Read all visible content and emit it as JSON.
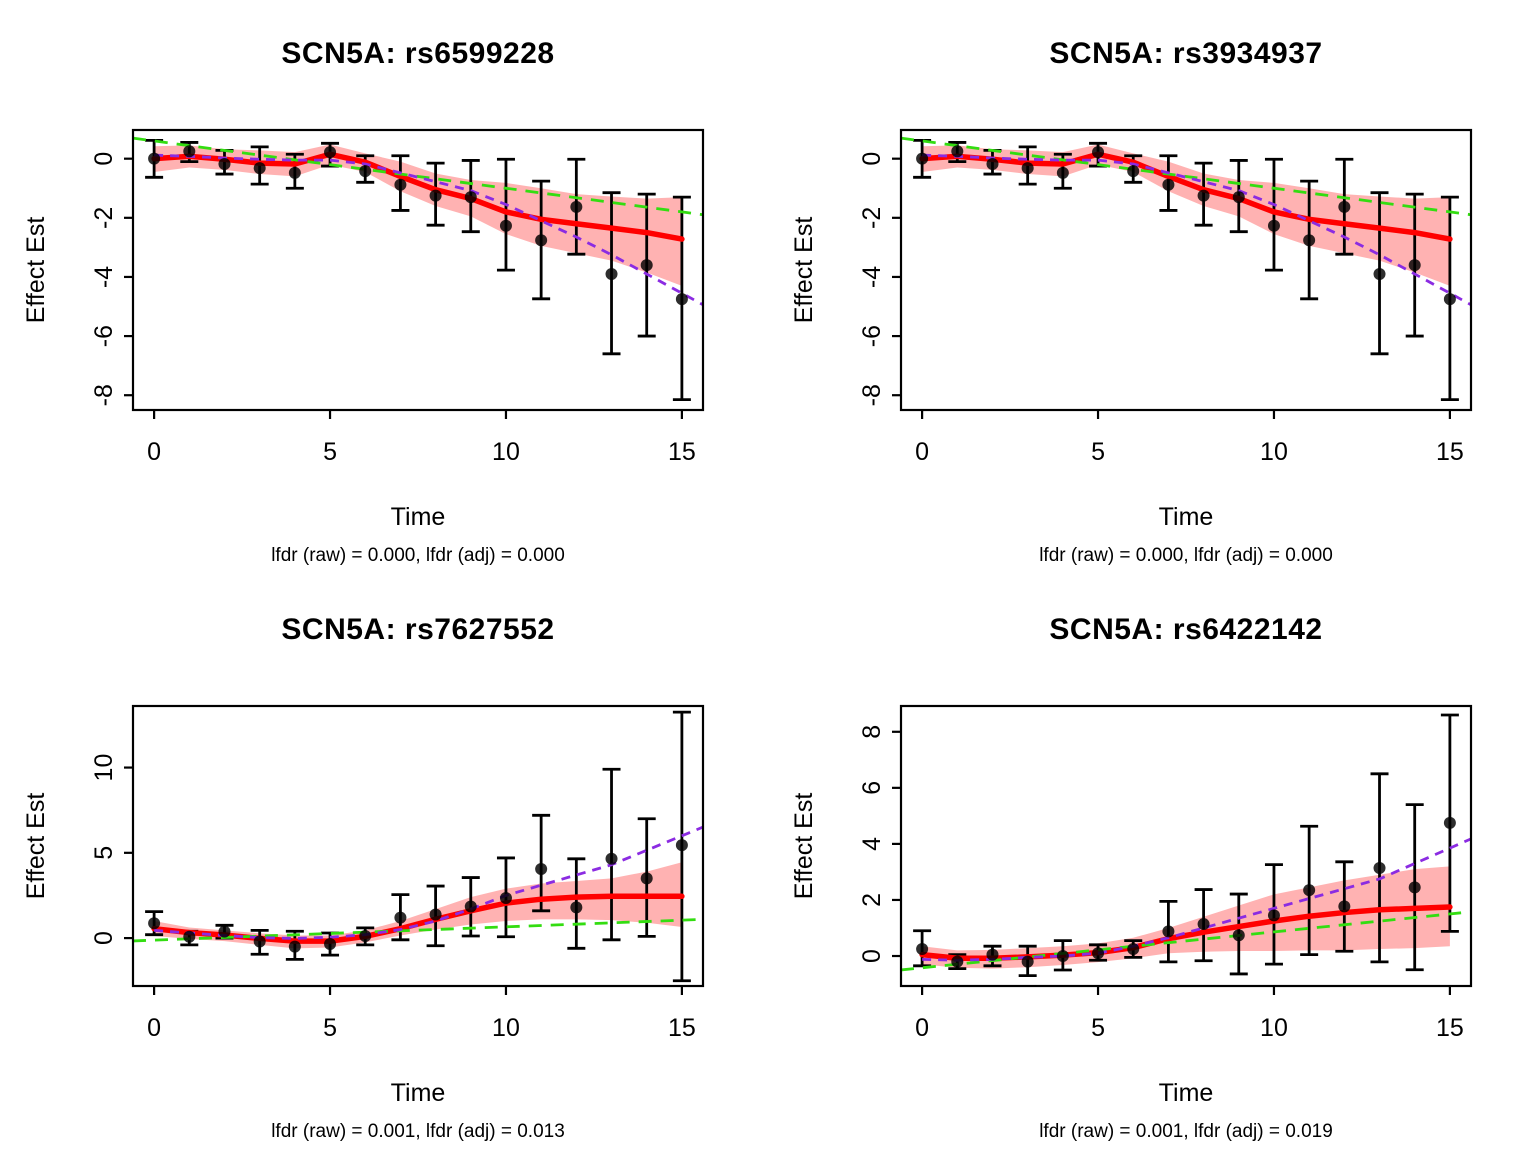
{
  "figure": {
    "background": "#ffffff",
    "colors": {
      "fit_line": "#FF0000",
      "confidence_band": "rgba(255,0,0,0.30)",
      "green_dashed": "#33DD11",
      "purple_dashed": "#8B2BE2",
      "points": "#000000",
      "error_bars": "#000000",
      "axis": "#000000"
    }
  },
  "chart_data": [
    {
      "type": "line",
      "title": "SCN5A: rs6599228",
      "xlabel": "Time",
      "ylabel": "Effect Est",
      "subtitle": "lfdr (raw) = 0.000, lfdr (adj) = 0.000",
      "lfdr_raw": "0.000",
      "lfdr_adj": "0.000",
      "xticks": [
        0,
        5,
        10,
        15
      ],
      "yticks": [
        0,
        -2,
        -4,
        -6,
        -8
      ],
      "xlim": [
        -0.6,
        15.6
      ],
      "ylim": [
        -8.5,
        0.97
      ],
      "x": [
        0,
        1,
        2,
        3,
        4,
        5,
        6,
        7,
        8,
        9,
        10,
        11,
        12,
        13,
        14,
        15
      ],
      "points": [
        0.0,
        0.25,
        -0.18,
        -0.32,
        -0.48,
        0.22,
        -0.42,
        -0.88,
        -1.25,
        -1.3,
        -2.27,
        -2.76,
        -1.63,
        -3.9,
        -3.6,
        -4.75
      ],
      "err_lo": [
        -0.63,
        -0.1,
        -0.52,
        -0.86,
        -1.0,
        -0.25,
        -0.8,
        -1.75,
        -2.25,
        -2.47,
        -3.77,
        -4.74,
        -3.23,
        -6.6,
        -6.0,
        -8.15
      ],
      "err_hi": [
        0.62,
        0.55,
        0.28,
        0.4,
        0.15,
        0.52,
        0.1,
        0.1,
        -0.15,
        -0.06,
        -0.02,
        -0.76,
        -0.02,
        -1.15,
        -1.2,
        -1.3
      ],
      "fit": [
        0.0,
        0.08,
        -0.02,
        -0.15,
        -0.18,
        0.15,
        -0.12,
        -0.6,
        -1.05,
        -1.35,
        -1.8,
        -2.05,
        -2.2,
        -2.35,
        -2.5,
        -2.72
      ],
      "band_hi": [
        0.42,
        0.45,
        0.32,
        0.28,
        0.22,
        0.48,
        0.18,
        -0.1,
        -0.5,
        -0.72,
        -0.82,
        -1.0,
        -1.2,
        -1.28,
        -1.35,
        -1.3
      ],
      "band_lo": [
        -0.45,
        -0.3,
        -0.38,
        -0.52,
        -0.6,
        -0.2,
        -0.45,
        -1.1,
        -1.6,
        -1.95,
        -2.55,
        -2.95,
        -3.2,
        -3.45,
        -3.85,
        -4.3
      ],
      "green_line_y": [
        0.6,
        -1.8
      ],
      "purple_line_y": [
        0.12,
        0.08,
        0.02,
        -0.02,
        -0.05,
        -0.05,
        -0.18,
        -0.48,
        -0.78,
        -1.08,
        -1.55,
        -2.1,
        -2.65,
        -3.25,
        -3.9,
        -4.55
      ]
    },
    {
      "type": "line",
      "title": "SCN5A: rs3934937",
      "xlabel": "Time",
      "ylabel": "Effect Est",
      "subtitle": "lfdr (raw) = 0.000, lfdr (adj) = 0.000",
      "lfdr_raw": "0.000",
      "lfdr_adj": "0.000",
      "xticks": [
        0,
        5,
        10,
        15
      ],
      "yticks": [
        0,
        -2,
        -4,
        -6,
        -8
      ],
      "xlim": [
        -0.6,
        15.6
      ],
      "ylim": [
        -8.5,
        0.97
      ],
      "x": [
        0,
        1,
        2,
        3,
        4,
        5,
        6,
        7,
        8,
        9,
        10,
        11,
        12,
        13,
        14,
        15
      ],
      "points": [
        0.0,
        0.25,
        -0.18,
        -0.32,
        -0.48,
        0.22,
        -0.42,
        -0.88,
        -1.25,
        -1.3,
        -2.27,
        -2.76,
        -1.63,
        -3.9,
        -3.6,
        -4.75
      ],
      "err_lo": [
        -0.63,
        -0.1,
        -0.52,
        -0.86,
        -1.0,
        -0.25,
        -0.8,
        -1.75,
        -2.25,
        -2.47,
        -3.77,
        -4.74,
        -3.23,
        -6.6,
        -6.0,
        -8.15
      ],
      "err_hi": [
        0.62,
        0.55,
        0.28,
        0.4,
        0.15,
        0.52,
        0.1,
        0.1,
        -0.15,
        -0.06,
        -0.02,
        -0.76,
        -0.02,
        -1.15,
        -1.2,
        -1.3
      ],
      "fit": [
        0.0,
        0.08,
        -0.02,
        -0.15,
        -0.18,
        0.15,
        -0.12,
        -0.6,
        -1.05,
        -1.35,
        -1.8,
        -2.05,
        -2.2,
        -2.35,
        -2.5,
        -2.72
      ],
      "band_hi": [
        0.42,
        0.45,
        0.32,
        0.28,
        0.22,
        0.48,
        0.18,
        -0.1,
        -0.5,
        -0.72,
        -0.82,
        -1.0,
        -1.2,
        -1.28,
        -1.35,
        -1.3
      ],
      "band_lo": [
        -0.45,
        -0.3,
        -0.38,
        -0.52,
        -0.6,
        -0.2,
        -0.45,
        -1.1,
        -1.6,
        -1.95,
        -2.55,
        -2.95,
        -3.2,
        -3.45,
        -3.85,
        -4.3
      ],
      "green_line_y": [
        0.6,
        -1.8
      ],
      "purple_line_y": [
        0.12,
        0.08,
        0.02,
        -0.02,
        -0.05,
        -0.05,
        -0.18,
        -0.48,
        -0.78,
        -1.08,
        -1.55,
        -2.1,
        -2.65,
        -3.25,
        -3.9,
        -4.55
      ]
    },
    {
      "type": "line",
      "title": "SCN5A: rs7627552",
      "xlabel": "Time",
      "ylabel": "Effect Est",
      "subtitle": "lfdr (raw) = 0.001, lfdr (adj) = 0.013",
      "lfdr_raw": "0.001",
      "lfdr_adj": "0.013",
      "xticks": [
        0,
        5,
        10,
        15
      ],
      "yticks": [
        0,
        5,
        10
      ],
      "xlim": [
        -0.6,
        15.6
      ],
      "ylim": [
        -2.81,
        13.61
      ],
      "x": [
        0,
        1,
        2,
        3,
        4,
        5,
        6,
        7,
        8,
        9,
        10,
        11,
        12,
        13,
        14,
        15
      ],
      "points": [
        0.87,
        0.08,
        0.38,
        -0.2,
        -0.5,
        -0.35,
        0.12,
        1.2,
        1.38,
        1.85,
        2.35,
        4.05,
        1.8,
        4.65,
        3.5,
        5.45
      ],
      "err_lo": [
        0.2,
        -0.4,
        0.0,
        -0.95,
        -1.25,
        -1.0,
        -0.4,
        -0.1,
        -0.45,
        0.12,
        0.08,
        1.6,
        -0.6,
        -0.1,
        0.1,
        -2.5
      ],
      "err_hi": [
        1.55,
        0.4,
        0.75,
        0.45,
        0.4,
        0.3,
        0.6,
        2.55,
        3.05,
        3.55,
        4.7,
        7.2,
        4.65,
        9.9,
        7.0,
        13.25
      ],
      "fit": [
        0.55,
        0.32,
        0.18,
        -0.02,
        -0.18,
        -0.18,
        0.1,
        0.55,
        1.1,
        1.6,
        2.05,
        2.28,
        2.4,
        2.45,
        2.45,
        2.45
      ],
      "band_hi": [
        1.0,
        0.62,
        0.45,
        0.28,
        0.15,
        0.15,
        0.45,
        1.0,
        1.7,
        2.4,
        2.9,
        3.2,
        3.35,
        3.5,
        3.9,
        4.45
      ],
      "band_lo": [
        0.12,
        -0.05,
        -0.18,
        -0.4,
        -0.6,
        -0.55,
        -0.25,
        0.15,
        0.5,
        0.8,
        1.0,
        1.1,
        1.1,
        1.05,
        0.9,
        0.65
      ],
      "green_line_y": [
        -0.12,
        1.05
      ],
      "purple_line_y": [
        0.45,
        0.3,
        0.15,
        0.03,
        -0.02,
        0.05,
        0.2,
        0.5,
        1.0,
        1.7,
        2.5,
        3.1,
        3.7,
        4.3,
        5.15,
        6.0
      ]
    },
    {
      "type": "line",
      "title": "SCN5A: rs6422142",
      "xlabel": "Time",
      "ylabel": "Effect Est",
      "subtitle": "lfdr (raw) = 0.001, lfdr (adj) = 0.019",
      "lfdr_raw": "0.001",
      "lfdr_adj": "0.019",
      "xticks": [
        0,
        5,
        10,
        15
      ],
      "yticks": [
        0,
        2,
        4,
        6,
        8
      ],
      "xlim": [
        -0.6,
        15.6
      ],
      "ylim": [
        -1.07,
        8.92
      ],
      "x": [
        0,
        1,
        2,
        3,
        4,
        5,
        6,
        7,
        8,
        9,
        10,
        11,
        12,
        13,
        14,
        15
      ],
      "points": [
        0.25,
        -0.2,
        0.05,
        -0.2,
        0.0,
        0.1,
        0.25,
        0.88,
        1.14,
        0.74,
        1.45,
        2.35,
        1.77,
        3.14,
        2.45,
        4.75
      ],
      "err_lo": [
        -0.35,
        -0.45,
        -0.35,
        -0.7,
        -0.5,
        -0.15,
        -0.05,
        -0.21,
        -0.17,
        -0.64,
        -0.29,
        0.05,
        0.17,
        -0.21,
        -0.49,
        0.88
      ],
      "err_hi": [
        0.9,
        0.05,
        0.35,
        0.35,
        0.55,
        0.4,
        0.55,
        1.95,
        2.37,
        2.21,
        3.26,
        4.63,
        3.36,
        6.5,
        5.4,
        8.6
      ],
      "fit": [
        0.05,
        -0.08,
        -0.08,
        -0.03,
        0.03,
        0.12,
        0.3,
        0.62,
        0.85,
        1.05,
        1.25,
        1.42,
        1.55,
        1.65,
        1.7,
        1.75
      ],
      "band_hi": [
        0.35,
        0.2,
        0.22,
        0.28,
        0.35,
        0.45,
        0.65,
        1.0,
        1.4,
        1.8,
        2.2,
        2.45,
        2.7,
        2.9,
        3.1,
        3.2
      ],
      "band_lo": [
        -0.3,
        -0.42,
        -0.45,
        -0.4,
        -0.32,
        -0.22,
        -0.08,
        0.1,
        0.15,
        0.18,
        0.18,
        0.2,
        0.2,
        0.25,
        0.28,
        0.35
      ],
      "green_line_y": [
        -0.42,
        1.5
      ],
      "purple_line_y": [
        -0.12,
        -0.15,
        -0.12,
        -0.05,
        0.0,
        0.1,
        0.35,
        0.65,
        1.0,
        1.35,
        1.7,
        2.05,
        2.4,
        2.75,
        3.3,
        3.85
      ]
    }
  ]
}
